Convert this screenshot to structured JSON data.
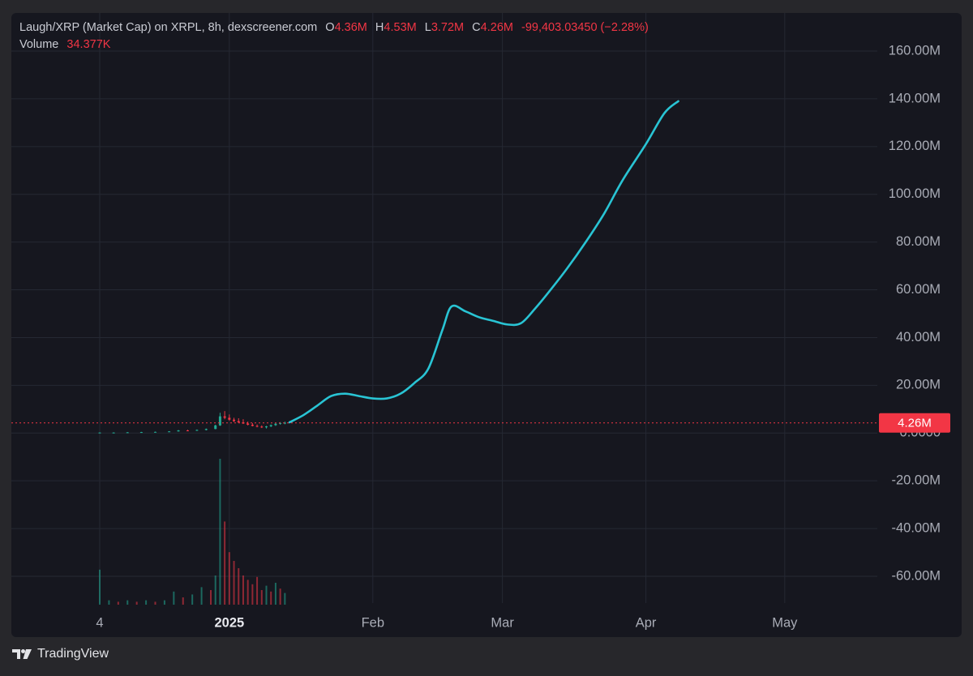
{
  "header": {
    "title": "Laugh/XRP (Market Cap) on XRPL, 8h, dexscreener.com",
    "ohlc": [
      {
        "key": "O",
        "value": "4.36M"
      },
      {
        "key": "H",
        "value": "4.53M"
      },
      {
        "key": "L",
        "value": "3.72M"
      },
      {
        "key": "C",
        "value": "4.26M"
      }
    ],
    "change": "-99,403.03450 (−2.28%)",
    "volume_label": "Volume",
    "volume_value": "34.377K"
  },
  "price_badge": "4.26M",
  "footer": {
    "brand": "TradingView"
  },
  "colors": {
    "background": "#16171f",
    "line": "#29c4d4",
    "down": "#f23645",
    "up": "#22ab94",
    "badge": "#f23645"
  },
  "chart_data": {
    "type": "line",
    "title": "Laugh/XRP (Market Cap) on XRPL, 8h, dexscreener.com",
    "ylim": [
      -70,
      165
    ],
    "y_unit": "M",
    "yticks": [
      "160.00M",
      "140.00M",
      "120.00M",
      "100.00M",
      "80.00M",
      "60.00M",
      "40.00M",
      "20.00M",
      "0.0000",
      "-20.00M",
      "-40.00M",
      "-60.00M"
    ],
    "ytick_values": [
      160,
      140,
      120,
      100,
      80,
      60,
      40,
      20,
      0,
      -20,
      -40,
      -60
    ],
    "x_domain": [
      "2024-12-04",
      "2025-05-21"
    ],
    "xticks": [
      {
        "label": "4",
        "date": "2024-12-04",
        "bold": false
      },
      {
        "label": "2025",
        "date": "2025-01-01",
        "bold": true
      },
      {
        "label": "Feb",
        "date": "2025-02-01",
        "bold": false
      },
      {
        "label": "Mar",
        "date": "2025-03-01",
        "bold": false
      },
      {
        "label": "Apr",
        "date": "2025-04-01",
        "bold": false
      },
      {
        "label": "May",
        "date": "2025-05-01",
        "bold": false
      }
    ],
    "current_value": 4.26,
    "line_series": [
      {
        "date": "2025-01-14",
        "value": 4.5
      },
      {
        "date": "2025-01-17",
        "value": 7.5
      },
      {
        "date": "2025-01-20",
        "value": 11.5
      },
      {
        "date": "2025-01-23",
        "value": 15.5
      },
      {
        "date": "2025-01-26",
        "value": 16.5
      },
      {
        "date": "2025-01-29",
        "value": 15.5
      },
      {
        "date": "2025-02-01",
        "value": 14.5
      },
      {
        "date": "2025-02-04",
        "value": 14.5
      },
      {
        "date": "2025-02-07",
        "value": 16.5
      },
      {
        "date": "2025-02-10",
        "value": 21
      },
      {
        "date": "2025-02-13",
        "value": 27
      },
      {
        "date": "2025-02-16",
        "value": 43
      },
      {
        "date": "2025-02-18",
        "value": 53
      },
      {
        "date": "2025-02-21",
        "value": 51
      },
      {
        "date": "2025-02-24",
        "value": 48.5
      },
      {
        "date": "2025-02-27",
        "value": 47
      },
      {
        "date": "2025-03-02",
        "value": 45.5
      },
      {
        "date": "2025-03-05",
        "value": 46
      },
      {
        "date": "2025-03-08",
        "value": 52
      },
      {
        "date": "2025-03-11",
        "value": 59
      },
      {
        "date": "2025-03-15",
        "value": 69
      },
      {
        "date": "2025-03-19",
        "value": 80
      },
      {
        "date": "2025-03-23",
        "value": 92
      },
      {
        "date": "2025-03-27",
        "value": 106
      },
      {
        "date": "2025-04-01",
        "value": 121
      },
      {
        "date": "2025-04-05",
        "value": 134
      },
      {
        "date": "2025-04-08",
        "value": 139
      }
    ],
    "candles": [
      {
        "date": "2024-12-04",
        "open": 0.1,
        "high": 0.3,
        "low": 0.0,
        "close": 0.2
      },
      {
        "date": "2024-12-07",
        "open": 0.2,
        "high": 0.3,
        "low": 0.1,
        "close": 0.2
      },
      {
        "date": "2024-12-10",
        "open": 0.2,
        "high": 0.4,
        "low": 0.1,
        "close": 0.3
      },
      {
        "date": "2024-12-13",
        "open": 0.3,
        "high": 0.5,
        "low": 0.2,
        "close": 0.4
      },
      {
        "date": "2024-12-16",
        "open": 0.4,
        "high": 0.6,
        "low": 0.3,
        "close": 0.5
      },
      {
        "date": "2024-12-19",
        "open": 0.5,
        "high": 0.8,
        "low": 0.4,
        "close": 0.7
      },
      {
        "date": "2024-12-21",
        "open": 0.7,
        "high": 1.3,
        "low": 0.6,
        "close": 1.1
      },
      {
        "date": "2024-12-23",
        "open": 1.1,
        "high": 1.4,
        "low": 0.8,
        "close": 1.0
      },
      {
        "date": "2024-12-25",
        "open": 1.0,
        "high": 1.5,
        "low": 0.9,
        "close": 1.3
      },
      {
        "date": "2024-12-27",
        "open": 1.3,
        "high": 1.9,
        "low": 1.1,
        "close": 1.7
      },
      {
        "date": "2024-12-29",
        "open": 1.7,
        "high": 3.5,
        "low": 1.6,
        "close": 3.2
      },
      {
        "date": "2024-12-30",
        "open": 3.2,
        "high": 8.5,
        "low": 3.0,
        "close": 7.0
      },
      {
        "date": "2024-12-31",
        "open": 7.0,
        "high": 9.2,
        "low": 5.8,
        "close": 6.4
      },
      {
        "date": "2025-01-01",
        "open": 6.4,
        "high": 7.8,
        "low": 5.2,
        "close": 5.6
      },
      {
        "date": "2025-01-02",
        "open": 5.6,
        "high": 6.4,
        "low": 4.6,
        "close": 5.0
      },
      {
        "date": "2025-01-03",
        "open": 5.0,
        "high": 6.2,
        "low": 4.2,
        "close": 4.5
      },
      {
        "date": "2025-01-04",
        "open": 4.5,
        "high": 5.8,
        "low": 3.8,
        "close": 4.0
      },
      {
        "date": "2025-01-05",
        "open": 4.0,
        "high": 4.8,
        "low": 3.2,
        "close": 3.5
      },
      {
        "date": "2025-01-06",
        "open": 3.5,
        "high": 4.2,
        "low": 2.8,
        "close": 3.0
      },
      {
        "date": "2025-01-07",
        "open": 3.0,
        "high": 3.6,
        "low": 2.4,
        "close": 2.7
      },
      {
        "date": "2025-01-08",
        "open": 2.7,
        "high": 3.2,
        "low": 2.1,
        "close": 2.4
      },
      {
        "date": "2025-01-09",
        "open": 2.4,
        "high": 3.0,
        "low": 1.9,
        "close": 2.8
      },
      {
        "date": "2025-01-10",
        "open": 2.8,
        "high": 3.6,
        "low": 2.5,
        "close": 3.3
      },
      {
        "date": "2025-01-11",
        "open": 3.3,
        "high": 4.2,
        "low": 3.0,
        "close": 3.9
      },
      {
        "date": "2025-01-12",
        "open": 3.9,
        "high": 4.6,
        "low": 3.5,
        "close": 4.2
      },
      {
        "date": "2025-01-13",
        "open": 4.2,
        "high": 4.8,
        "low": 3.7,
        "close": 4.3
      }
    ],
    "volume": {
      "unit": "relative",
      "bars": [
        {
          "date": "2024-12-04",
          "value": 0.24,
          "dir": "up"
        },
        {
          "date": "2024-12-06",
          "value": 0.03,
          "dir": "up"
        },
        {
          "date": "2024-12-08",
          "value": 0.02,
          "dir": "down"
        },
        {
          "date": "2024-12-10",
          "value": 0.03,
          "dir": "up"
        },
        {
          "date": "2024-12-12",
          "value": 0.02,
          "dir": "down"
        },
        {
          "date": "2024-12-14",
          "value": 0.03,
          "dir": "up"
        },
        {
          "date": "2024-12-16",
          "value": 0.02,
          "dir": "down"
        },
        {
          "date": "2024-12-18",
          "value": 0.03,
          "dir": "up"
        },
        {
          "date": "2024-12-20",
          "value": 0.09,
          "dir": "up"
        },
        {
          "date": "2024-12-22",
          "value": 0.05,
          "dir": "down"
        },
        {
          "date": "2024-12-24",
          "value": 0.07,
          "dir": "up"
        },
        {
          "date": "2024-12-26",
          "value": 0.12,
          "dir": "up"
        },
        {
          "date": "2024-12-28",
          "value": 0.1,
          "dir": "down"
        },
        {
          "date": "2024-12-29",
          "value": 0.2,
          "dir": "up"
        },
        {
          "date": "2024-12-30",
          "value": 1.0,
          "dir": "up"
        },
        {
          "date": "2024-12-31",
          "value": 0.57,
          "dir": "down"
        },
        {
          "date": "2025-01-01",
          "value": 0.36,
          "dir": "down"
        },
        {
          "date": "2025-01-02",
          "value": 0.3,
          "dir": "down"
        },
        {
          "date": "2025-01-03",
          "value": 0.25,
          "dir": "down"
        },
        {
          "date": "2025-01-04",
          "value": 0.2,
          "dir": "down"
        },
        {
          "date": "2025-01-05",
          "value": 0.17,
          "dir": "down"
        },
        {
          "date": "2025-01-06",
          "value": 0.14,
          "dir": "down"
        },
        {
          "date": "2025-01-07",
          "value": 0.19,
          "dir": "down"
        },
        {
          "date": "2025-01-08",
          "value": 0.1,
          "dir": "down"
        },
        {
          "date": "2025-01-09",
          "value": 0.13,
          "dir": "up"
        },
        {
          "date": "2025-01-10",
          "value": 0.09,
          "dir": "down"
        },
        {
          "date": "2025-01-11",
          "value": 0.15,
          "dir": "up"
        },
        {
          "date": "2025-01-12",
          "value": 0.11,
          "dir": "down"
        },
        {
          "date": "2025-01-13",
          "value": 0.08,
          "dir": "up"
        }
      ]
    }
  }
}
